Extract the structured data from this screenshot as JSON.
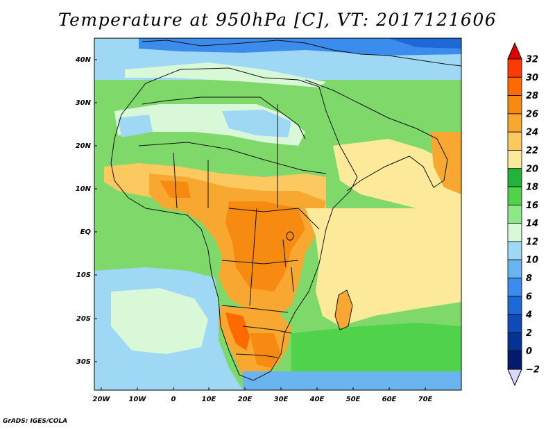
{
  "title": "Temperature at 950hPa [C], VT: 2017121606",
  "footer": "GrADS: IGES/COLA",
  "map": {
    "lat_ticks": [
      "40N",
      "30N",
      "20N",
      "10N",
      "EQ",
      "10S",
      "20S",
      "30S"
    ],
    "lon_ticks": [
      "20W",
      "10W",
      "0",
      "10E",
      "20E",
      "30E",
      "40E",
      "50E",
      "60E",
      "70E"
    ],
    "ocean_color": "#7fd86a",
    "land_color": "#f7a43a"
  },
  "colorbar": {
    "levels": [
      "32",
      "30",
      "28",
      "26",
      "24",
      "22",
      "20",
      "18",
      "16",
      "14",
      "12",
      "10",
      "8",
      "6",
      "4",
      "2",
      "0",
      "−2"
    ],
    "colors": [
      "#ff3a00",
      "#ff6a00",
      "#f78a10",
      "#f8a830",
      "#fcc860",
      "#fde99a",
      "#21b43a",
      "#50d24a",
      "#8ee887",
      "#d8f8d8",
      "#9fd8f5",
      "#6ab4f0",
      "#3c8ced",
      "#1f68d8",
      "#0f4ab8",
      "#063293",
      "#051a6d"
    ],
    "top_arrow_color": "#e00000",
    "bottom_arrow_color": "#dcd8ff"
  }
}
